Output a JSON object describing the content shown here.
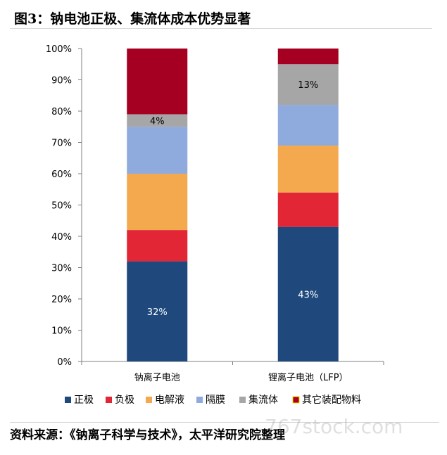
{
  "title": "图3：钠电池正极、集流体成本优势显著",
  "source": "资料来源：《钠离子科学与技术》，太平洋研究院整理",
  "watermark": "767stock.com",
  "chart_data": {
    "type": "bar",
    "stacked": true,
    "categories": [
      "钠离子电池",
      "锂离子电池（LFP）"
    ],
    "ylim": [
      0,
      100
    ],
    "yticks": [
      "0%",
      "10%",
      "20%",
      "30%",
      "40%",
      "50%",
      "60%",
      "70%",
      "80%",
      "90%",
      "100%"
    ],
    "legend_position": "bottom",
    "series": [
      {
        "name": "正极",
        "color": "#1f497d",
        "values": [
          32,
          43
        ],
        "labels": [
          "32%",
          "43%"
        ],
        "label_color": "#ffffff"
      },
      {
        "name": "负极",
        "color": "#e32636",
        "values": [
          10,
          11
        ],
        "labels": [
          "",
          ""
        ],
        "label_color": "#ffffff"
      },
      {
        "name": "电解液",
        "color": "#f4a94f",
        "values": [
          18,
          15
        ],
        "labels": [
          "",
          ""
        ],
        "label_color": "#000000"
      },
      {
        "name": "隔膜",
        "color": "#8faadc",
        "values": [
          15,
          13
        ],
        "labels": [
          "",
          ""
        ],
        "label_color": "#000000"
      },
      {
        "name": "集流体",
        "color": "#a6a6a6",
        "values": [
          4,
          13
        ],
        "labels": [
          "4%",
          "13%"
        ],
        "label_color": "#000000"
      },
      {
        "name": "其它装配物料",
        "color": "#a50021",
        "values": [
          21,
          5
        ],
        "labels": [
          "",
          ""
        ],
        "label_color": "#ffffff"
      }
    ]
  }
}
